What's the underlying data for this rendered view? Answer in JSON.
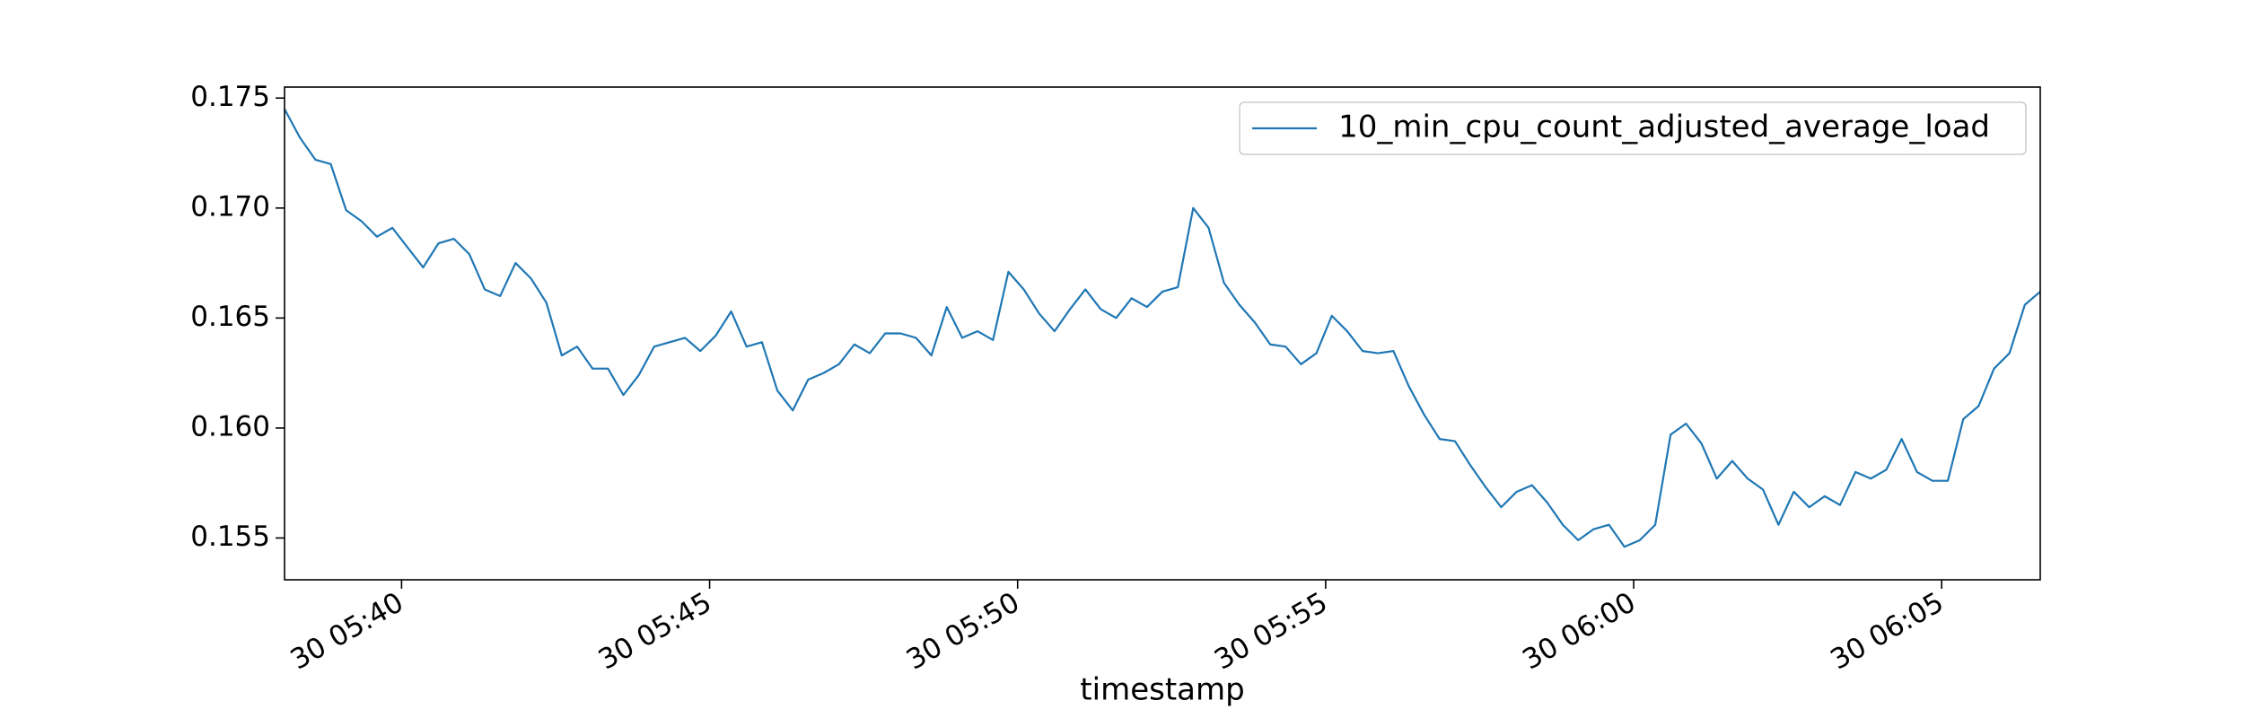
{
  "chart_data": {
    "type": "line",
    "xlabel": "timestamp",
    "x": [
      "30 05:38:06",
      "30 05:38:21",
      "30 05:38:36",
      "30 05:38:51",
      "30 05:39:06",
      "30 05:39:21",
      "30 05:39:36",
      "30 05:39:51",
      "30 05:40:06",
      "30 05:40:21",
      "30 05:40:36",
      "30 05:40:51",
      "30 05:41:06",
      "30 05:41:21",
      "30 05:41:36",
      "30 05:41:51",
      "30 05:42:06",
      "30 05:42:21",
      "30 05:42:36",
      "30 05:42:51",
      "30 05:43:06",
      "30 05:43:21",
      "30 05:43:36",
      "30 05:43:51",
      "30 05:44:06",
      "30 05:44:21",
      "30 05:44:36",
      "30 05:44:51",
      "30 05:45:06",
      "30 05:45:21",
      "30 05:45:36",
      "30 05:45:51",
      "30 05:46:06",
      "30 05:46:21",
      "30 05:46:36",
      "30 05:46:51",
      "30 05:47:06",
      "30 05:47:21",
      "30 05:47:36",
      "30 05:47:51",
      "30 05:48:06",
      "30 05:48:21",
      "30 05:48:36",
      "30 05:48:51",
      "30 05:49:06",
      "30 05:49:21",
      "30 05:49:36",
      "30 05:49:51",
      "30 05:50:06",
      "30 05:50:21",
      "30 05:50:36",
      "30 05:50:51",
      "30 05:51:06",
      "30 05:51:21",
      "30 05:51:36",
      "30 05:51:51",
      "30 05:52:06",
      "30 05:52:21",
      "30 05:52:36",
      "30 05:52:51",
      "30 05:53:06",
      "30 05:53:21",
      "30 05:53:36",
      "30 05:53:51",
      "30 05:54:06",
      "30 05:54:21",
      "30 05:54:36",
      "30 05:54:51",
      "30 05:55:06",
      "30 05:55:21",
      "30 05:55:36",
      "30 05:55:51",
      "30 05:56:06",
      "30 05:56:21",
      "30 05:56:36",
      "30 05:56:51",
      "30 05:57:06",
      "30 05:57:21",
      "30 05:57:36",
      "30 05:57:51",
      "30 05:58:06",
      "30 05:58:21",
      "30 05:58:36",
      "30 05:58:51",
      "30 05:59:06",
      "30 05:59:21",
      "30 05:59:36",
      "30 05:59:51",
      "30 06:00:06",
      "30 06:00:21",
      "30 06:00:36",
      "30 06:00:51",
      "30 06:01:06",
      "30 06:01:21",
      "30 06:01:36",
      "30 06:01:51",
      "30 06:02:06",
      "30 06:02:21",
      "30 06:02:36",
      "30 06:02:51",
      "30 06:03:06",
      "30 06:03:21",
      "30 06:03:36",
      "30 06:03:51",
      "30 06:04:06",
      "30 06:04:21",
      "30 06:04:36",
      "30 06:04:51",
      "30 06:05:06",
      "30 06:05:21",
      "30 06:05:36",
      "30 06:05:51",
      "30 06:06:06",
      "30 06:06:21",
      "30 06:06:36"
    ],
    "series": [
      {
        "name": "10_min_cpu_count_adjusted_average_load",
        "color": "#1f77b4",
        "values": [
          0.1745,
          0.1732,
          0.1722,
          0.172,
          0.1699,
          0.1694,
          0.1687,
          0.1691,
          0.1682,
          0.1673,
          0.1684,
          0.1686,
          0.1679,
          0.1663,
          0.166,
          0.1675,
          0.1668,
          0.1657,
          0.1633,
          0.1637,
          0.1627,
          0.1627,
          0.1615,
          0.1624,
          0.1637,
          0.1639,
          0.1641,
          0.1635,
          0.1642,
          0.1653,
          0.1637,
          0.1639,
          0.1617,
          0.1608,
          0.1622,
          0.1625,
          0.1629,
          0.1638,
          0.1634,
          0.1643,
          0.1643,
          0.1641,
          0.1633,
          0.1655,
          0.1641,
          0.1644,
          0.164,
          0.1671,
          0.1663,
          0.1652,
          0.1644,
          0.1654,
          0.1663,
          0.1654,
          0.165,
          0.1659,
          0.1655,
          0.1662,
          0.1664,
          0.17,
          0.1691,
          0.1666,
          0.1656,
          0.1648,
          0.1638,
          0.1637,
          0.1629,
          0.1634,
          0.1651,
          0.1644,
          0.1635,
          0.1634,
          0.1635,
          0.1619,
          0.1606,
          0.1595,
          0.1594,
          0.1583,
          0.1573,
          0.1564,
          0.1571,
          0.1574,
          0.1566,
          0.1556,
          0.1549,
          0.1554,
          0.1556,
          0.1546,
          0.1549,
          0.1556,
          0.1597,
          0.1602,
          0.1593,
          0.1577,
          0.1585,
          0.1577,
          0.1572,
          0.1556,
          0.1571,
          0.1564,
          0.1569,
          0.1565,
          0.158,
          0.1577,
          0.1581,
          0.1595,
          0.158,
          0.1576,
          0.1576,
          0.1604,
          0.161,
          0.1627,
          0.1634,
          0.1656,
          0.1662
        ]
      }
    ],
    "xlim": [
      "30 05:38:06",
      "30 06:06:36"
    ],
    "xticks": [
      "30 05:40",
      "30 05:45",
      "30 05:50",
      "30 05:55",
      "30 06:00",
      "30 06:05"
    ],
    "ylim": [
      0.1531,
      0.1755
    ],
    "yticks": [
      0.155,
      {
        "value": 0.16,
        "label": "0.160"
      },
      0.165,
      {
        "value": 0.17,
        "label": "0.170"
      },
      0.175
    ],
    "grid": false,
    "legend": "upper right"
  }
}
